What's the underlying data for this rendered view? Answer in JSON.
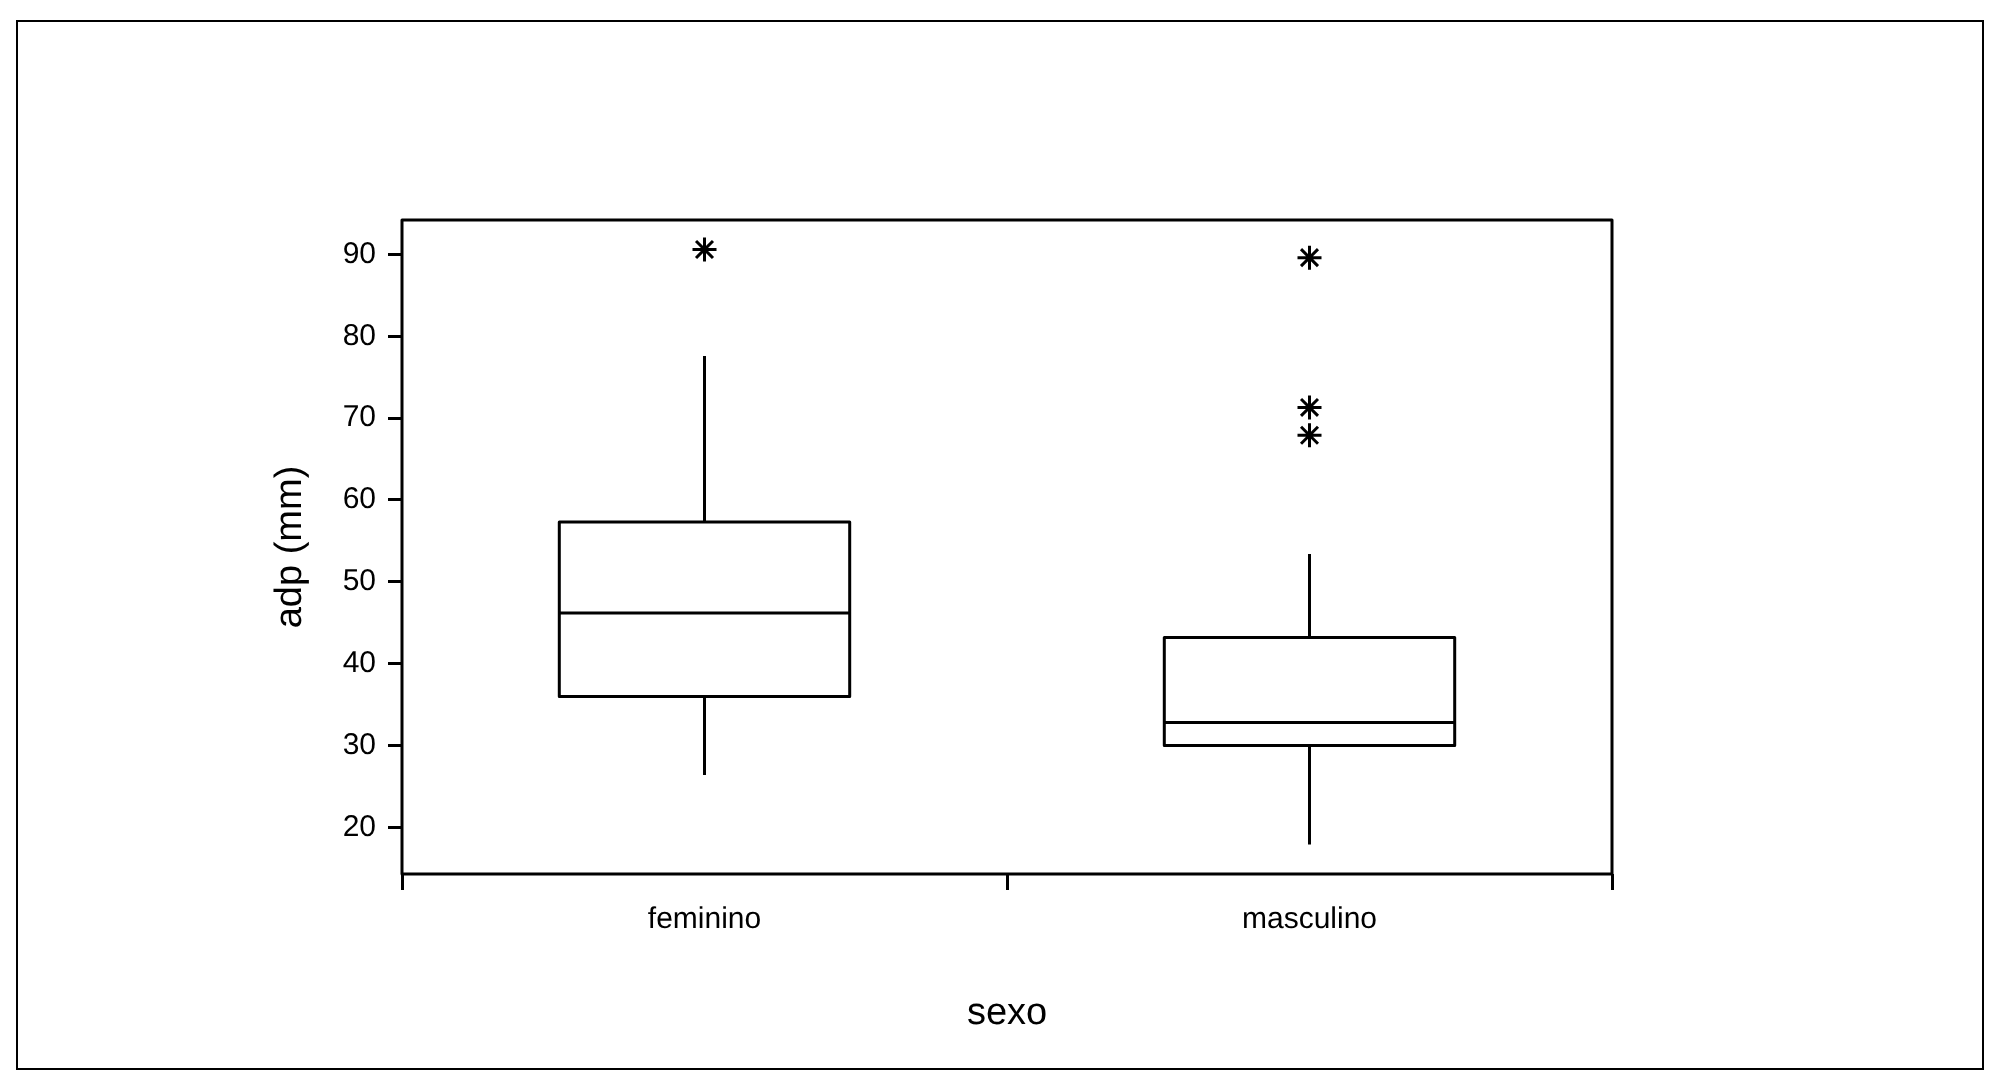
{
  "chart_data": {
    "type": "box",
    "xlabel": "sexo",
    "ylabel": "adp (mm)",
    "categories": [
      "feminino",
      "masculino"
    ],
    "boxes": [
      {
        "low": 26.4,
        "q1": 36.0,
        "median": 46.2,
        "q3": 57.3,
        "high": 77.6,
        "outliers": [
          90.6
        ]
      },
      {
        "low": 17.9,
        "q1": 30.0,
        "median": 32.8,
        "q3": 43.2,
        "high": 53.4,
        "outliers": [
          89.6,
          71.3,
          67.9
        ]
      }
    ],
    "ylim": [
      14.3,
      94.2
    ],
    "yticks": [
      20,
      30,
      40,
      50,
      60,
      70,
      80,
      90
    ],
    "grid": false,
    "marker": "star"
  }
}
